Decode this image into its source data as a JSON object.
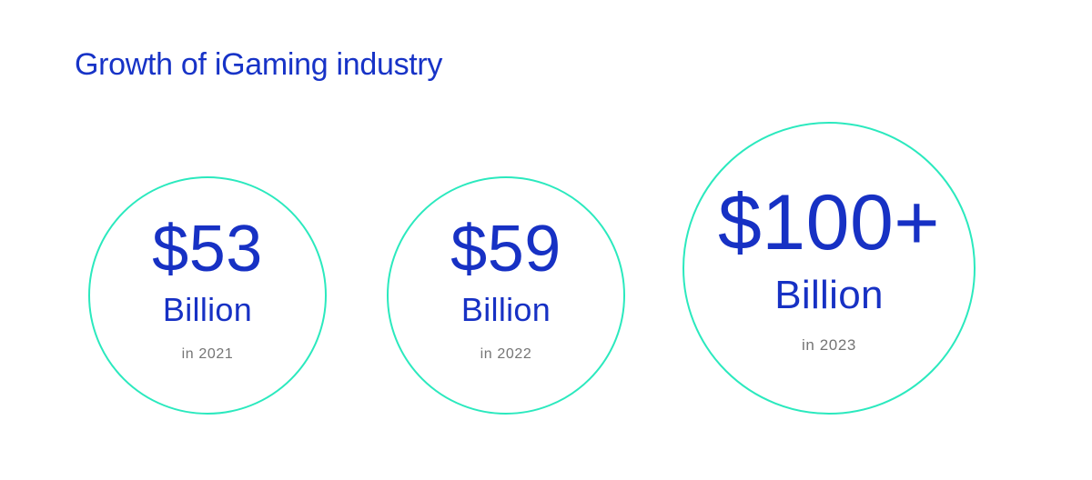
{
  "page": {
    "title": "Growth of iGaming industry",
    "background": "#ffffff"
  },
  "colors": {
    "title_blue": "#1733c7",
    "value_blue": "#1731c4",
    "circle_border_mint": "#2be9be",
    "year_gray": "#757575"
  },
  "chart_data": {
    "type": "table",
    "representation": "proportional-circles",
    "title": "Growth of iGaming industry",
    "categories": [
      "in 2021",
      "in 2022",
      "in 2023"
    ],
    "values": [
      53,
      59,
      100
    ],
    "value_labels": [
      "$53",
      "$59",
      "$100+"
    ],
    "unit_label": "Billion",
    "legend": "none",
    "layout": "three circles left to right; third circle larger to encode larger value"
  },
  "circles": [
    {
      "value": "$53",
      "unit": "Billion",
      "year": "in 2021"
    },
    {
      "value": "$59",
      "unit": "Billion",
      "year": "in 2022"
    },
    {
      "value": "$100+",
      "unit": "Billion",
      "year": "in 2023"
    }
  ]
}
